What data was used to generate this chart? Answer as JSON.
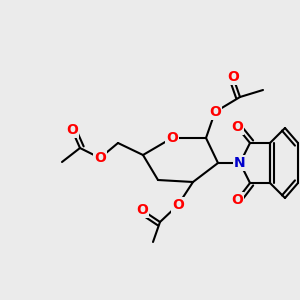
{
  "bg_color": "#ebebeb",
  "atom_colors": {
    "O": "#ff0000",
    "N": "#0000cc",
    "C": "#000000"
  },
  "bond_color": "#000000",
  "bond_width": 1.5,
  "font_size_atom": 10,
  "fig_size": [
    3.0,
    3.0
  ],
  "dpi": 100
}
